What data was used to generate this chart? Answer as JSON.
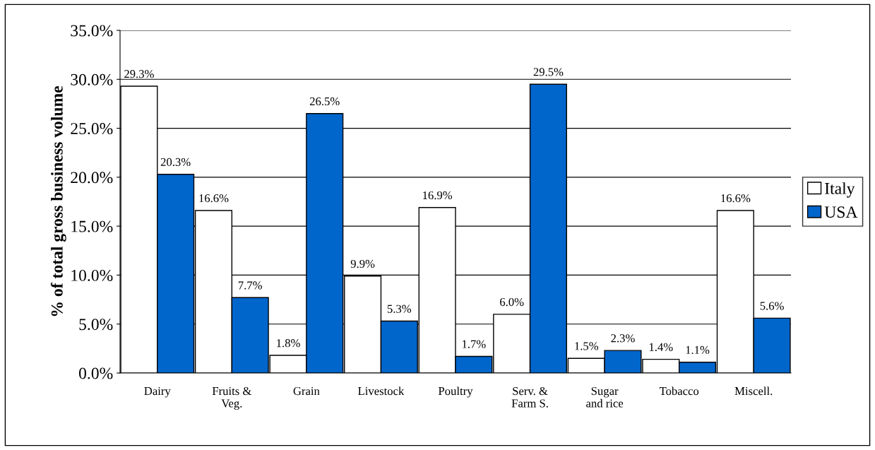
{
  "chart_data": {
    "type": "bar",
    "categories": [
      "Dairy",
      "Fruits &\nVeg.",
      "Grain",
      "Livestock",
      "Poultry",
      "Serv. &\nFarm S.",
      "Sugar\nand rice",
      "Tobacco",
      "Miscell."
    ],
    "ylabel": "% of total gross business volume",
    "series": [
      {
        "name": "Italy",
        "color": "#ffffff",
        "values": [
          29.3,
          16.6,
          1.8,
          9.9,
          16.9,
          6.0,
          1.5,
          1.4,
          16.6
        ],
        "value_labels": [
          "29.3%",
          "16.6%",
          "1.8%",
          "9.9%",
          "16.9%",
          "6.0%",
          "1.5%",
          "1.4%",
          "16.6%"
        ]
      },
      {
        "name": "USA",
        "color": "#0066cc",
        "values": [
          20.3,
          7.7,
          26.5,
          5.3,
          1.7,
          29.5,
          2.3,
          1.1,
          5.6
        ],
        "value_labels": [
          "20.3%",
          "7.7%",
          "26.5%",
          "5.3%",
          "1.7%",
          "29.5%",
          "2.3%",
          "1.1%",
          "5.6%"
        ]
      }
    ],
    "ylim": [
      0,
      35
    ],
    "yticks": [
      {
        "value": 0,
        "label": "0.0%"
      },
      {
        "value": 5,
        "label": "5.0%"
      },
      {
        "value": 10,
        "label": "10.0%"
      },
      {
        "value": 15,
        "label": "15.0%"
      },
      {
        "value": 20,
        "label": "20.0%"
      },
      {
        "value": 25,
        "label": "25.0%"
      },
      {
        "value": 30,
        "label": "30.0%"
      },
      {
        "value": 35,
        "label": "35.0%"
      }
    ],
    "grid": "y",
    "legend": "right"
  }
}
